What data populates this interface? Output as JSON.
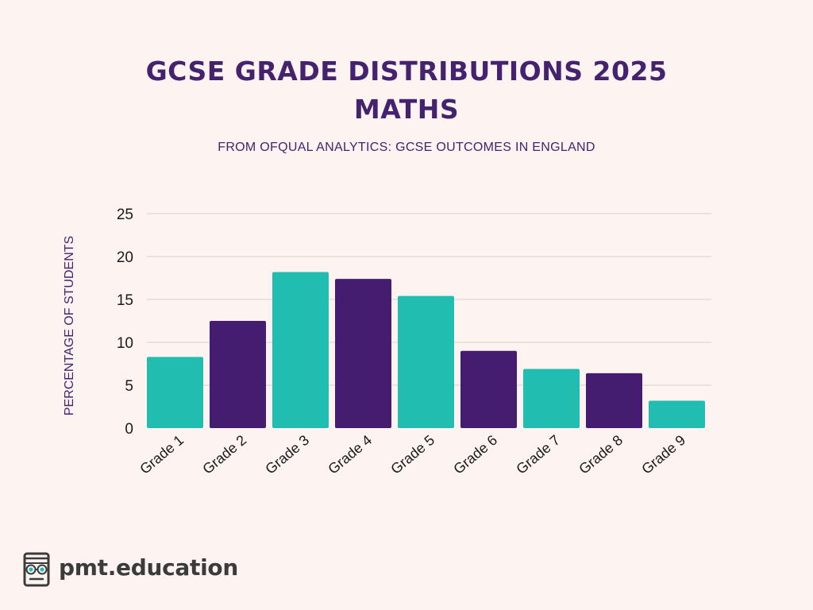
{
  "chart_data": {
    "type": "bar",
    "title_line1": "GCSE GRADE DISTRIBUTIONS 2025",
    "title_line2": "MATHS",
    "subtitle": "FROM OFQUAL ANALYTICS: GCSE OUTCOMES IN ENGLAND",
    "xlabel": "",
    "ylabel": "PERCENTAGE OF STUDENTS",
    "categories": [
      "Grade 1",
      "Grade 2",
      "Grade 3",
      "Grade 4",
      "Grade 5",
      "Grade 6",
      "Grade 7",
      "Grade 8",
      "Grade 9"
    ],
    "values": [
      8.3,
      12.5,
      18.2,
      17.4,
      15.4,
      9.0,
      6.9,
      6.4,
      3.2
    ],
    "ylim": [
      0,
      25
    ],
    "yticks": [
      0,
      5,
      10,
      15,
      20,
      25
    ],
    "grid": true,
    "legend": "none",
    "colors": {
      "teal": "#22bdb1",
      "purple": "#451d70",
      "title": "#45226e",
      "grid": "#d9cfcc",
      "background": "#fdf4f1"
    }
  },
  "logo": {
    "text": "pmt.education",
    "icon": "books-with-glasses-icon"
  }
}
